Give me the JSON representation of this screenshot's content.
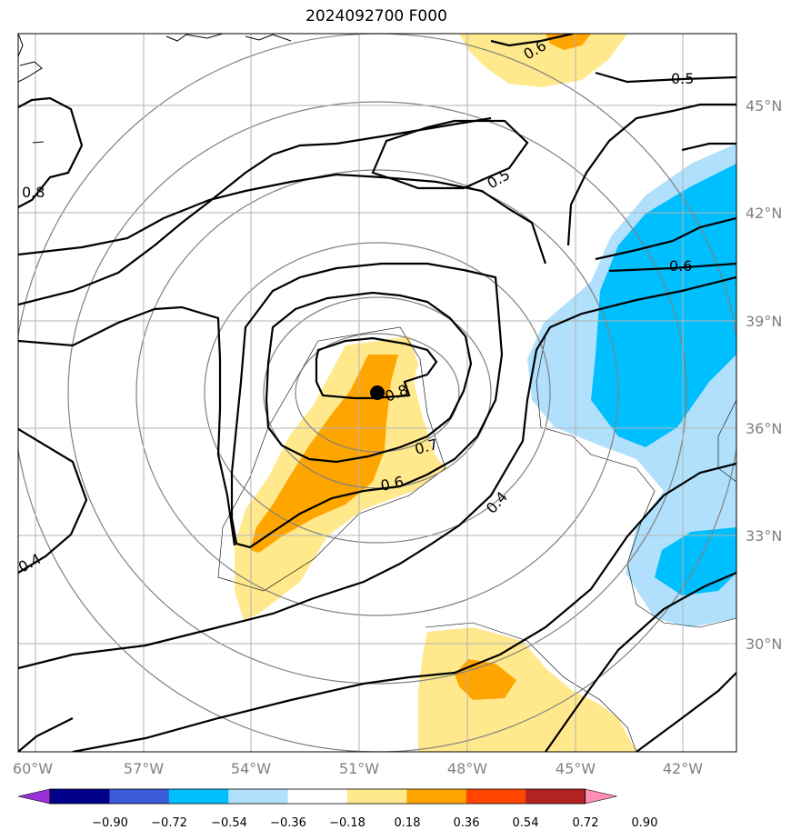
{
  "title": "2024092700 F000",
  "map": {
    "lon_ticks": [
      "60°W",
      "57°W",
      "54°W",
      "51°W",
      "48°W",
      "45°W",
      "42°W"
    ],
    "lat_ticks": [
      "45°N",
      "42°N",
      "39°N",
      "36°N",
      "33°N",
      "30°N"
    ],
    "contour_labels": [
      "0.5",
      "0.5",
      "0.6",
      "0.6",
      "0.6",
      "0.7",
      "0.8",
      "0.8",
      "0.4",
      "0.4"
    ],
    "center_marker": "black-dot"
  },
  "colorbar": {
    "ticks": [
      "−0.90",
      "−0.72",
      "−0.54",
      "−0.36",
      "−0.18",
      "0.18",
      "0.36",
      "0.54",
      "0.72",
      "0.90"
    ],
    "colors": [
      "#9b30d8",
      "#00008b",
      "#3a5bd9",
      "#00bfff",
      "#b0e0fb",
      "#ffffff",
      "#ffe98c",
      "#ffa500",
      "#ff4500",
      "#b22222",
      "#ff8db4"
    ]
  }
}
